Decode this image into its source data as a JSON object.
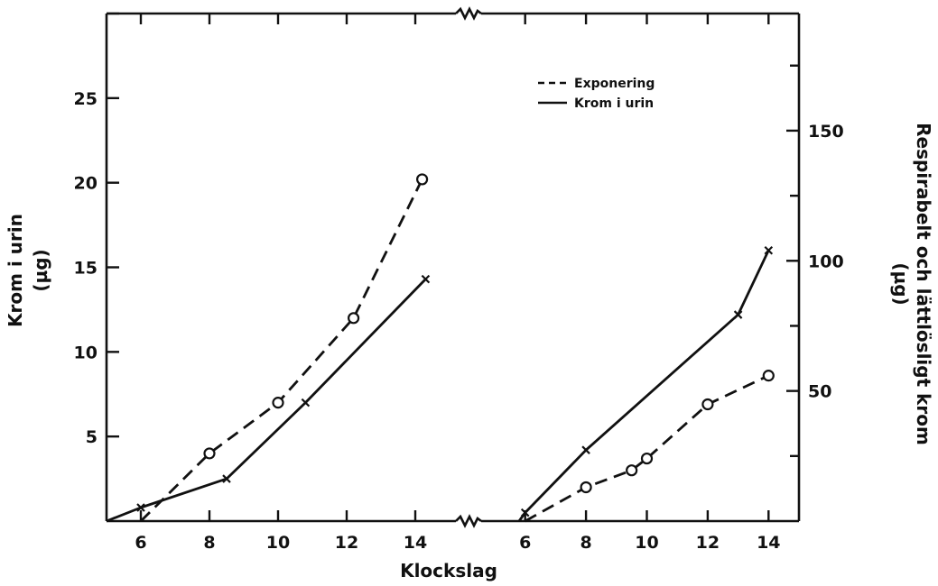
{
  "chart_data": {
    "type": "line",
    "xlabel": "Klockslag",
    "ylabel_left": [
      "Krom i urin",
      "(µg)"
    ],
    "ylabel_right": [
      "Respirabelt och lättlösligt krom",
      "(µg)"
    ],
    "legend": {
      "position": "top-right",
      "entries": [
        {
          "label": "Exponering",
          "style": "dashed"
        },
        {
          "label": "Krom i urin",
          "style": "solid"
        }
      ]
    },
    "axis_break": true,
    "left_axis": {
      "ylim": [
        0,
        30
      ],
      "ticks": [
        5,
        10,
        15,
        20,
        25
      ]
    },
    "right_axis": {
      "ylim": [
        0,
        195
      ],
      "ticks": [
        50,
        100,
        150
      ]
    },
    "panels": [
      {
        "xlim": [
          5,
          15
        ],
        "xticks": [
          6,
          8,
          10,
          12,
          14
        ],
        "series": [
          {
            "name": "Krom i urin",
            "axis": "left",
            "style": "solid",
            "marker": "x",
            "points": [
              [
                5,
                0
              ],
              [
                6,
                0.8
              ],
              [
                8.5,
                2.5
              ],
              [
                10.8,
                7
              ],
              [
                14.3,
                14.3
              ]
            ]
          },
          {
            "name": "Exponering",
            "axis": "left",
            "style": "dashed",
            "marker": "circle",
            "points": [
              [
                6,
                0
              ],
              [
                8,
                4
              ],
              [
                10,
                7
              ],
              [
                12.2,
                12
              ],
              [
                14.2,
                20.2
              ]
            ]
          }
        ]
      },
      {
        "xlim": [
          5,
          15
        ],
        "xticks": [
          6,
          8,
          10,
          12,
          14
        ],
        "series": [
          {
            "name": "Krom i urin",
            "axis": "left",
            "style": "solid",
            "marker": "x",
            "points": [
              [
                5.8,
                0
              ],
              [
                6,
                0.5
              ],
              [
                8,
                4.2
              ],
              [
                13,
                12.2
              ],
              [
                14,
                16
              ]
            ]
          },
          {
            "name": "Exponering",
            "axis": "left",
            "style": "dashed",
            "marker": "circle",
            "points": [
              [
                6,
                0
              ],
              [
                8,
                2
              ],
              [
                9.5,
                3
              ],
              [
                10,
                3.7
              ],
              [
                12,
                6.9
              ],
              [
                14,
                8.6
              ]
            ]
          }
        ]
      }
    ]
  }
}
